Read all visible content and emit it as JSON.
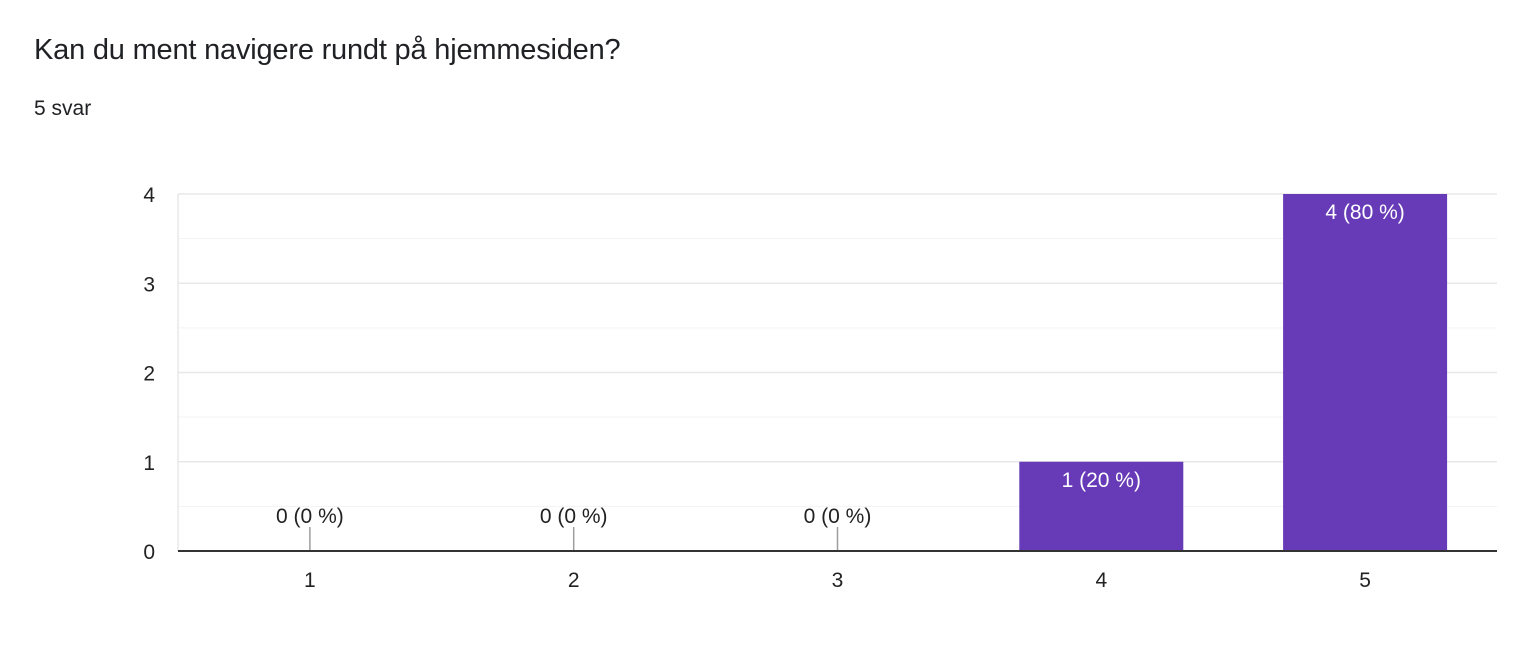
{
  "question": {
    "title": "Kan du ment navigere rundt på hjemmesiden?",
    "response_count": "5 svar"
  },
  "colors": {
    "bar": "#673ab7",
    "grid": "#e8e8e8",
    "minor_grid": "#f3f3f3",
    "axis": "#333333",
    "text": "#222222",
    "bar_label_inside": "#ffffff"
  },
  "chart_data": {
    "type": "bar",
    "title": "",
    "xlabel": "",
    "ylabel": "",
    "categories": [
      "1",
      "2",
      "3",
      "4",
      "5"
    ],
    "values": [
      0,
      0,
      0,
      1,
      4
    ],
    "data_labels": [
      "0 (0 %)",
      "0 (0 %)",
      "0 (0 %)",
      "1 (20 %)",
      "4 (80 %)"
    ],
    "ylim": [
      0,
      4
    ],
    "yticks": [
      0,
      1,
      2,
      3,
      4
    ],
    "grid": true,
    "legend": "none"
  }
}
